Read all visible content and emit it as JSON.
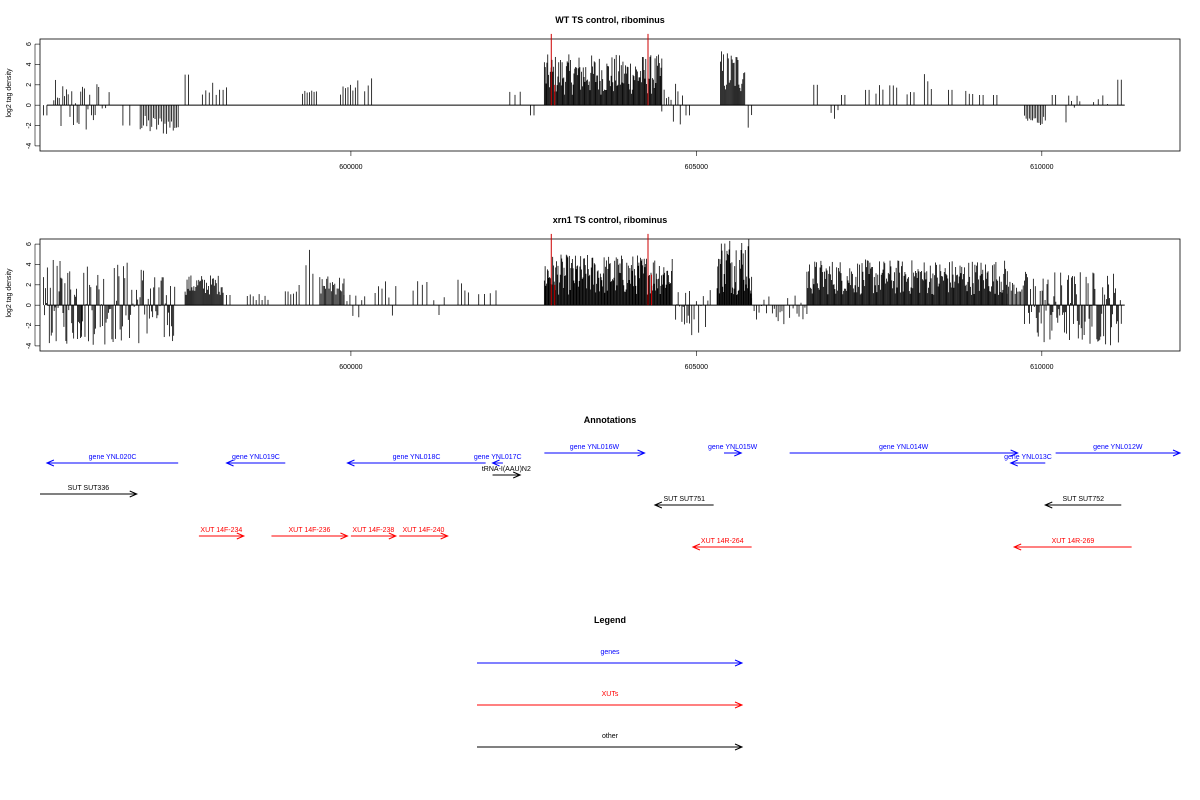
{
  "chart_data": [
    {
      "type": "bar",
      "title": "WT TS control, ribominus",
      "ylabel": "log2 tag density",
      "xlim": [
        595500,
        612000
      ],
      "ylim": [
        -4.5,
        6.5
      ],
      "yticks": [
        -4,
        -2,
        0,
        2,
        4,
        6
      ],
      "xticks": [
        600000,
        605000,
        610000
      ],
      "bar_color": "#000000",
      "highlight_color": "#cc0000",
      "highlights": [
        {
          "x": 602900,
          "value": 7.0
        },
        {
          "x": 604300,
          "value": 7.0
        },
        {
          "x": 604300,
          "value": 3.5
        },
        {
          "x": 602950,
          "value": 2.0
        }
      ],
      "segments": [
        {
          "start": 595550,
          "end": 595600,
          "count": 2,
          "min": -1,
          "max": -1
        },
        {
          "start": 595700,
          "end": 596350,
          "count": 26,
          "min": -3,
          "max": 2.5
        },
        {
          "start": 596400,
          "end": 596500,
          "count": 3,
          "min": -2,
          "max": 2
        },
        {
          "start": 596700,
          "end": 596800,
          "count": 2,
          "min": -2,
          "max": -2
        },
        {
          "start": 596950,
          "end": 597500,
          "count": 24,
          "min": -3,
          "max": -1
        },
        {
          "start": 597600,
          "end": 597650,
          "count": 2,
          "min": 3,
          "max": 3
        },
        {
          "start": 597850,
          "end": 598200,
          "count": 8,
          "min": 1,
          "max": 2.8
        },
        {
          "start": 599300,
          "end": 599500,
          "count": 7,
          "min": 1,
          "max": 1.5
        },
        {
          "start": 599850,
          "end": 600100,
          "count": 8,
          "min": 1,
          "max": 2.5
        },
        {
          "start": 600200,
          "end": 600300,
          "count": 3,
          "min": 1,
          "max": 2.8
        },
        {
          "start": 602300,
          "end": 602450,
          "count": 3,
          "min": 1,
          "max": 1.5
        },
        {
          "start": 602600,
          "end": 602650,
          "count": 2,
          "min": -1,
          "max": -1
        },
        {
          "start": 602800,
          "end": 604500,
          "count": 140,
          "min": 1,
          "max": 5
        },
        {
          "start": 604500,
          "end": 604800,
          "count": 10,
          "min": -2,
          "max": 2.5
        },
        {
          "start": 604850,
          "end": 604900,
          "count": 2,
          "min": -1,
          "max": -1
        },
        {
          "start": 605350,
          "end": 605700,
          "count": 26,
          "min": 1,
          "max": 5.5
        },
        {
          "start": 605750,
          "end": 605800,
          "count": 2,
          "min": -2.5,
          "max": 2.2
        },
        {
          "start": 606700,
          "end": 606750,
          "count": 2,
          "min": 2,
          "max": 2
        },
        {
          "start": 606950,
          "end": 607050,
          "count": 3,
          "min": -1.5,
          "max": 2.5
        },
        {
          "start": 607100,
          "end": 607150,
          "count": 2,
          "min": 1,
          "max": 1
        },
        {
          "start": 607450,
          "end": 607500,
          "count": 2,
          "min": 1.5,
          "max": 1.5
        },
        {
          "start": 607600,
          "end": 607700,
          "count": 3,
          "min": 1,
          "max": 2.2
        },
        {
          "start": 607800,
          "end": 607900,
          "count": 3,
          "min": 1.5,
          "max": 2.2
        },
        {
          "start": 608050,
          "end": 608150,
          "count": 3,
          "min": 1,
          "max": 1.5
        },
        {
          "start": 608300,
          "end": 608400,
          "count": 3,
          "min": 1.5,
          "max": 3.5
        },
        {
          "start": 608650,
          "end": 608700,
          "count": 2,
          "min": 1.5,
          "max": 1.5
        },
        {
          "start": 608900,
          "end": 609000,
          "count": 3,
          "min": 1,
          "max": 1.5
        },
        {
          "start": 609100,
          "end": 609150,
          "count": 2,
          "min": 1,
          "max": 1
        },
        {
          "start": 609300,
          "end": 609350,
          "count": 2,
          "min": 1,
          "max": 1
        },
        {
          "start": 609750,
          "end": 610050,
          "count": 14,
          "min": -2,
          "max": -1
        },
        {
          "start": 610150,
          "end": 610200,
          "count": 2,
          "min": 1,
          "max": 1
        },
        {
          "start": 610350,
          "end": 610550,
          "count": 6,
          "min": -2,
          "max": 1
        },
        {
          "start": 610750,
          "end": 610950,
          "count": 4,
          "min": -1.5,
          "max": 1
        },
        {
          "start": 611100,
          "end": 611150,
          "count": 2,
          "min": 2.5,
          "max": 2.5
        }
      ]
    },
    {
      "type": "bar",
      "title": "xrn1 TS control, ribominus",
      "ylabel": "log2 tag density",
      "xlim": [
        595500,
        612000
      ],
      "ylim": [
        -4.5,
        6.5
      ],
      "yticks": [
        -4,
        -2,
        0,
        2,
        4,
        6
      ],
      "xticks": [
        600000,
        605000,
        610000
      ],
      "bar_color": "#000000",
      "highlight_color": "#cc0000",
      "highlights": [
        {
          "x": 602900,
          "value": 7.0
        },
        {
          "x": 604300,
          "value": 7.0
        },
        {
          "x": 602950,
          "value": 2.0
        },
        {
          "x": 604350,
          "value": 3.0
        }
      ],
      "segments": [
        {
          "start": 595550,
          "end": 596100,
          "count": 40,
          "min": -4,
          "max": 4.5
        },
        {
          "start": 596100,
          "end": 597100,
          "count": 60,
          "min": -4,
          "max": 4.5
        },
        {
          "start": 597100,
          "end": 597450,
          "count": 24,
          "min": -4,
          "max": 3
        },
        {
          "start": 597600,
          "end": 598150,
          "count": 40,
          "min": 1,
          "max": 3
        },
        {
          "start": 598200,
          "end": 598250,
          "count": 2,
          "min": 1,
          "max": 1
        },
        {
          "start": 598500,
          "end": 598800,
          "count": 8,
          "min": 0.5,
          "max": 1.2
        },
        {
          "start": 599050,
          "end": 599250,
          "count": 6,
          "min": 1,
          "max": 2
        },
        {
          "start": 599350,
          "end": 599450,
          "count": 3,
          "min": 1,
          "max": 6
        },
        {
          "start": 599550,
          "end": 599900,
          "count": 22,
          "min": 1,
          "max": 3
        },
        {
          "start": 599900,
          "end": 600200,
          "count": 8,
          "min": -1.5,
          "max": 1.5
        },
        {
          "start": 600350,
          "end": 600500,
          "count": 4,
          "min": 1,
          "max": 2.5
        },
        {
          "start": 600550,
          "end": 600650,
          "count": 3,
          "min": -2,
          "max": 2.5
        },
        {
          "start": 600900,
          "end": 601100,
          "count": 4,
          "min": 1,
          "max": 2.5
        },
        {
          "start": 601200,
          "end": 601350,
          "count": 3,
          "min": -1,
          "max": 1
        },
        {
          "start": 601550,
          "end": 601700,
          "count": 4,
          "min": 1,
          "max": 2.5
        },
        {
          "start": 601850,
          "end": 602100,
          "count": 4,
          "min": 1,
          "max": 1.5
        },
        {
          "start": 602800,
          "end": 604650,
          "count": 170,
          "min": 1,
          "max": 5
        },
        {
          "start": 604700,
          "end": 604900,
          "count": 12,
          "min": -2,
          "max": 1.5
        },
        {
          "start": 604900,
          "end": 605200,
          "count": 10,
          "min": -3,
          "max": 2
        },
        {
          "start": 605300,
          "end": 605800,
          "count": 50,
          "min": 1,
          "max": 7
        },
        {
          "start": 605800,
          "end": 606050,
          "count": 8,
          "min": -2,
          "max": 1
        },
        {
          "start": 606100,
          "end": 606350,
          "count": 10,
          "min": -2,
          "max": 1
        },
        {
          "start": 606400,
          "end": 606600,
          "count": 8,
          "min": -2,
          "max": 1
        },
        {
          "start": 606600,
          "end": 609500,
          "count": 230,
          "min": 1,
          "max": 4.5
        },
        {
          "start": 609500,
          "end": 609750,
          "count": 14,
          "min": 1,
          "max": 2.5
        },
        {
          "start": 609750,
          "end": 611150,
          "count": 100,
          "min": -4,
          "max": 3.5
        }
      ]
    }
  ],
  "annotations": {
    "title": "Annotations",
    "features": [
      {
        "label": "gene YNL020C",
        "start": 595600,
        "end": 597500,
        "strand": "-",
        "kind": "gene",
        "row": 1
      },
      {
        "label": "gene YNL019C",
        "start": 598200,
        "end": 599050,
        "strand": "-",
        "kind": "gene",
        "row": 1
      },
      {
        "label": "gene YNL018C",
        "start": 599950,
        "end": 601950,
        "strand": "-",
        "kind": "gene",
        "row": 1
      },
      {
        "label": "gene YNL017C",
        "start": 602050,
        "end": 602200,
        "strand": "-",
        "kind": "gene",
        "row": 1
      },
      {
        "label": "tRNA-I(AAU)N2",
        "start": 602050,
        "end": 602450,
        "strand": "+",
        "kind": "other",
        "row": 2
      },
      {
        "label": "gene YNL016W",
        "start": 602800,
        "end": 604250,
        "strand": "+",
        "kind": "gene",
        "row": 0
      },
      {
        "label": "gene YNL015W",
        "start": 605400,
        "end": 605650,
        "strand": "+",
        "kind": "gene",
        "row": 0
      },
      {
        "label": "gene YNL014W",
        "start": 606350,
        "end": 609650,
        "strand": "+",
        "kind": "gene",
        "row": 0
      },
      {
        "label": "gene YNL013C",
        "start": 609550,
        "end": 610050,
        "strand": "-",
        "kind": "gene",
        "row": 1
      },
      {
        "label": "gene YNL012W",
        "start": 610200,
        "end": 612000,
        "strand": "+",
        "kind": "gene",
        "row": 0
      },
      {
        "label": "SUT SUT336",
        "start": 595500,
        "end": 596900,
        "strand": "+",
        "kind": "other",
        "row": 3
      },
      {
        "label": "SUT SUT751",
        "start": 604400,
        "end": 605250,
        "strand": "-",
        "kind": "other",
        "row": 4
      },
      {
        "label": "SUT SUT752",
        "start": 610050,
        "end": 611150,
        "strand": "-",
        "kind": "other",
        "row": 4
      },
      {
        "label": "XUT 14F-234",
        "start": 597800,
        "end": 598450,
        "strand": "+",
        "kind": "xut",
        "row": 5
      },
      {
        "label": "XUT 14F-236",
        "start": 598850,
        "end": 599950,
        "strand": "+",
        "kind": "xut",
        "row": 5
      },
      {
        "label": "XUT 14F-238",
        "start": 600000,
        "end": 600650,
        "strand": "+",
        "kind": "xut",
        "row": 5
      },
      {
        "label": "XUT 14F-240",
        "start": 600700,
        "end": 601400,
        "strand": "+",
        "kind": "xut",
        "row": 5
      },
      {
        "label": "XUT 14R-264",
        "start": 604950,
        "end": 605800,
        "strand": "-",
        "kind": "xut",
        "row": 6
      },
      {
        "label": "XUT 14R-269",
        "start": 609600,
        "end": 611300,
        "strand": "-",
        "kind": "xut",
        "row": 6
      }
    ]
  },
  "legend": {
    "title": "Legend",
    "items": [
      {
        "label": "genes",
        "color": "#0000ff"
      },
      {
        "label": "XUTs",
        "color": "#ff0000"
      },
      {
        "label": "other",
        "color": "#000000"
      }
    ]
  },
  "colors": {
    "gene": "#0000ff",
    "xut": "#ff0000",
    "other": "#000000"
  }
}
